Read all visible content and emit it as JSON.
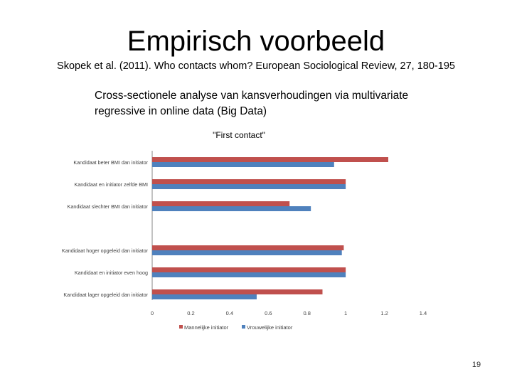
{
  "slide": {
    "title": "Empirisch voorbeeld",
    "subtitle": "Skopek et al. (2011). Who contacts whom? European Sociological Review, 27, 180-195",
    "body": "Cross-sectionele analyse van kansverhoudingen via multivariate regressive in online data (Big Data)",
    "page_number": "19"
  },
  "chart_data": {
    "type": "bar",
    "orientation": "horizontal",
    "title": "\"First contact\"",
    "categories": [
      "Kandidaat beter BMI dan initiator",
      "Kandidaat en initiator zelfde BMI",
      "Kandidaat slechter BMI dan initiator",
      "",
      "Kandidaat hoger opgeleid dan initiator",
      "Kandidaat en initiator even hoog",
      "Kandidaat lager opgeleid dan initiator"
    ],
    "series": [
      {
        "name": "Mannelijke initiator",
        "color": "#c0504d",
        "values": [
          1.22,
          1.0,
          0.71,
          null,
          0.99,
          1.0,
          0.88
        ]
      },
      {
        "name": "Vrouwelijke initiator",
        "color": "#4f81bd",
        "values": [
          0.94,
          1.0,
          0.82,
          null,
          0.98,
          1.0,
          0.54
        ]
      }
    ],
    "xlim": [
      0,
      1.4
    ],
    "xticks": [
      0,
      0.2,
      0.4,
      0.6,
      0.8,
      1,
      1.2,
      1.4
    ],
    "grid": false,
    "legend_position": "bottom"
  }
}
